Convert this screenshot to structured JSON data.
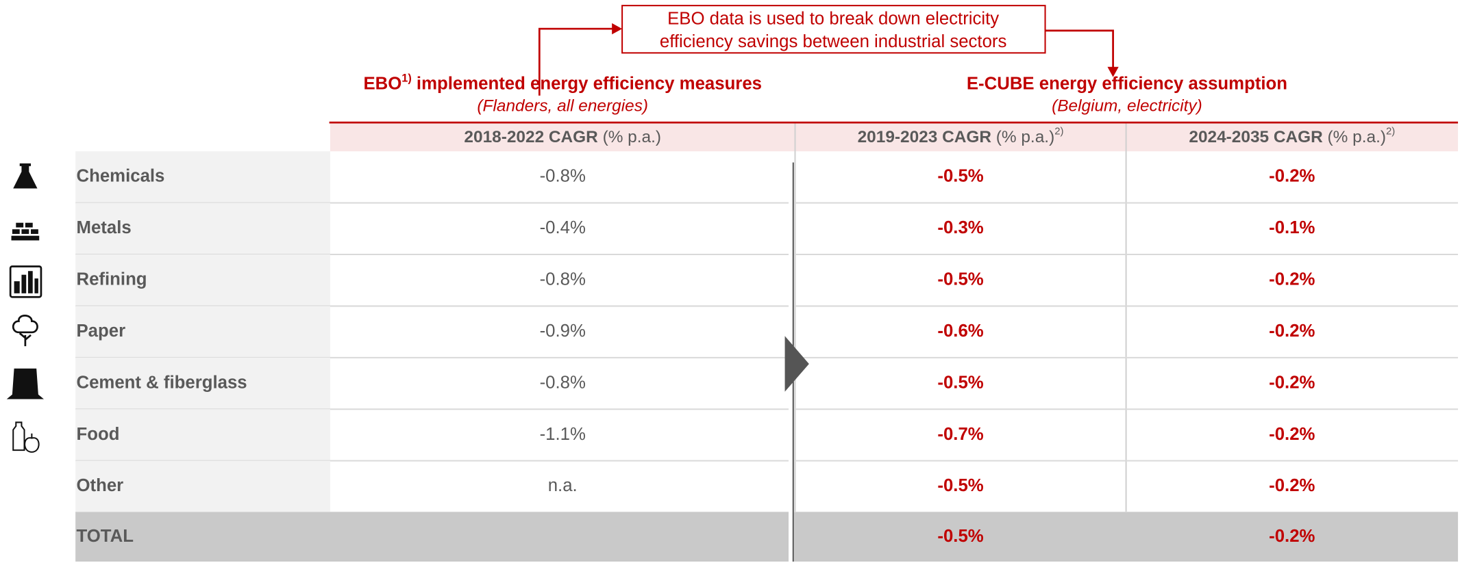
{
  "callout": {
    "lines": [
      "EBO data is used to break down electricity",
      "efficiency savings between industrial sectors"
    ]
  },
  "left_header": {
    "title": "EBO",
    "sup": "1)",
    "title_rest": " implemented energy efficiency measures",
    "subtitle": "(Flanders, all energies)"
  },
  "right_header": {
    "title": "E-CUBE energy efficiency assumption",
    "subtitle": "(Belgium, electricity)"
  },
  "table": {
    "columns": [
      {
        "bold": "2018-2022 CAGR",
        "rest": " (% p.a.)"
      },
      {
        "bold": "2019-2023 CAGR",
        "rest": " (% p.a.)",
        "sup": "2)"
      },
      {
        "bold": "2024-2035 CAGR",
        "rest": " (% p.a.)",
        "sup": "2)"
      }
    ],
    "rows": [
      [
        "Chemicals",
        "-0.8%",
        "-0.5%",
        "-0.2%"
      ],
      [
        "Metals",
        "-0.4%",
        "-0.3%",
        "-0.1%"
      ],
      [
        "Refining",
        "-0.8%",
        "-0.5%",
        "-0.2%"
      ],
      [
        "Paper",
        "-0.9%",
        "-0.6%",
        "-0.2%"
      ],
      [
        "Cement & fiberglass",
        "-0.8%",
        "-0.5%",
        "-0.2%"
      ],
      [
        "Food",
        "-1.1%",
        "-0.7%",
        "-0.2%"
      ],
      [
        "Other",
        "n.a.",
        "-0.5%",
        "-0.2%"
      ]
    ],
    "total": {
      "label": "TOTAL",
      "values": [
        "-0.5%",
        "-0.2%"
      ]
    }
  }
}
